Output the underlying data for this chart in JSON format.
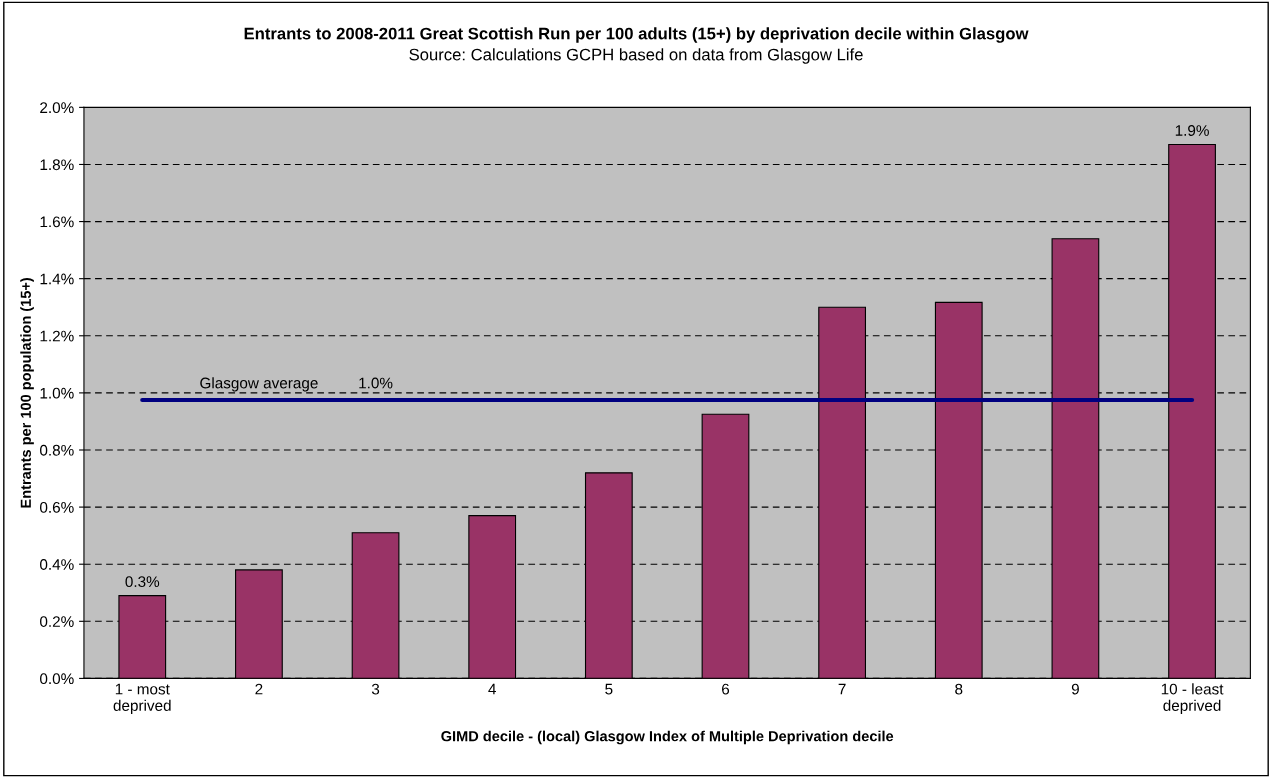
{
  "chart_data": {
    "type": "bar",
    "title": "Entrants to 2008-2011 Great Scottish Run per 100 adults (15+) by deprivation decile within Glasgow",
    "subtitle": "Source: Calculations GCPH based on data from Glasgow Life",
    "xlabel": "GIMD decile - (local) Glasgow Index of Multiple Deprivation decile",
    "ylabel": "Entrants per 100 population (15+)",
    "categories": [
      "1 - most\ndeprived",
      "2",
      "3",
      "4",
      "5",
      "6",
      "7",
      "8",
      "9",
      "10 - least\ndeprived"
    ],
    "values": [
      0.29,
      0.38,
      0.51,
      0.57,
      0.72,
      0.925,
      1.3,
      1.317,
      1.54,
      1.87
    ],
    "value_labels": [
      "0.3%",
      null,
      null,
      null,
      null,
      null,
      null,
      null,
      null,
      "1.9%"
    ],
    "color": "#993366",
    "ylim": [
      0,
      2.0
    ],
    "yticks": [
      {
        "value": 0,
        "label": "0.0%"
      },
      {
        "value": 0.2,
        "label": "0.2%"
      },
      {
        "value": 0.4,
        "label": "0.4%"
      },
      {
        "value": 0.6,
        "label": "0.6%"
      },
      {
        "value": 0.8,
        "label": "0.8%"
      },
      {
        "value": 1.0,
        "label": "1.0%"
      },
      {
        "value": 1.2,
        "label": "1.2%"
      },
      {
        "value": 1.4,
        "label": "1.4%"
      },
      {
        "value": 1.6,
        "label": "1.6%"
      },
      {
        "value": 1.8,
        "label": "1.8%"
      },
      {
        "value": 2.0,
        "label": "2.0%"
      }
    ],
    "grid": "y",
    "ref_lines": [
      {
        "axis": "y",
        "value": 0.975,
        "label": "Glasgow average",
        "color": "#000080"
      }
    ],
    "annotations": [
      {
        "text": "1.0%",
        "x": "3",
        "y": 0.975
      }
    ],
    "legend": false
  }
}
